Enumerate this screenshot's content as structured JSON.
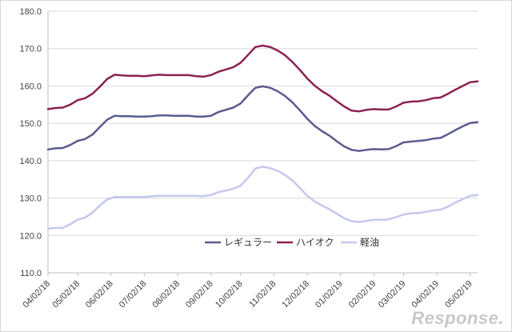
{
  "chart_data": {
    "type": "line",
    "title": "",
    "xlabel": "",
    "ylabel": "",
    "ylim": [
      110,
      180
    ],
    "y_ticks": [
      "110.0",
      "120.0",
      "130.0",
      "140.0",
      "150.0",
      "160.0",
      "170.0",
      "180.0"
    ],
    "x_tick_labels": [
      "04/02/18",
      "05/02/18",
      "06/02/18",
      "07/02/18",
      "08/02/18",
      "09/02/18",
      "10/02/18",
      "11/02/18",
      "12/02/18",
      "01/02/19",
      "02/02/19",
      "03/02/19",
      "04/02/19",
      "05/02/19"
    ],
    "x_tick_positions": [
      0,
      4,
      8.5,
      13,
      17.5,
      22,
      26,
      30.5,
      35,
      39.5,
      44,
      48,
      52.5,
      57
    ],
    "grid": "horizontal",
    "legend_position": "bottom-center",
    "series": [
      {
        "name": "レギュラー",
        "color": "#5b5b8f",
        "values": [
          143.0,
          143.3,
          143.4,
          144.2,
          145.3,
          145.8,
          147.0,
          149.0,
          151.0,
          152.0,
          151.9,
          151.9,
          151.8,
          151.8,
          151.9,
          152.1,
          152.1,
          152.0,
          152.0,
          152.0,
          151.8,
          151.8,
          152.0,
          153.0,
          153.6,
          154.2,
          155.3,
          157.5,
          159.5,
          159.9,
          159.5,
          158.6,
          157.3,
          155.6,
          153.5,
          151.2,
          149.3,
          147.9,
          146.7,
          145.2,
          143.8,
          142.9,
          142.6,
          142.9,
          143.1,
          143.0,
          143.1,
          143.9,
          144.9,
          145.1,
          145.3,
          145.5,
          145.9,
          146.1,
          147.1,
          148.2,
          149.2,
          150.1,
          150.3
        ]
      },
      {
        "name": "ハイオク",
        "color": "#8b2252",
        "values": [
          153.8,
          154.1,
          154.2,
          155.0,
          156.2,
          156.7,
          157.9,
          159.8,
          161.9,
          163.0,
          162.8,
          162.7,
          162.7,
          162.6,
          162.8,
          163.0,
          162.9,
          162.9,
          162.9,
          162.9,
          162.6,
          162.5,
          162.9,
          163.8,
          164.4,
          165.0,
          166.2,
          168.3,
          170.4,
          170.8,
          170.4,
          169.5,
          168.2,
          166.4,
          164.3,
          162.0,
          160.1,
          158.6,
          157.4,
          155.9,
          154.5,
          153.4,
          153.2,
          153.6,
          153.8,
          153.7,
          153.7,
          154.5,
          155.5,
          155.8,
          155.9,
          156.2,
          156.7,
          156.9,
          157.9,
          159.0,
          160.0,
          161.0,
          161.2
        ]
      },
      {
        "name": "軽油",
        "color": "#c5c8ee",
        "values": [
          121.8,
          122.0,
          122.0,
          123.0,
          124.2,
          124.8,
          126.1,
          128.0,
          129.6,
          130.3,
          130.3,
          130.3,
          130.3,
          130.3,
          130.5,
          130.6,
          130.6,
          130.6,
          130.6,
          130.6,
          130.6,
          130.5,
          130.8,
          131.6,
          132.0,
          132.5,
          133.3,
          135.4,
          137.9,
          138.4,
          138.0,
          137.3,
          136.2,
          134.7,
          132.7,
          130.6,
          129.1,
          128.0,
          127.0,
          125.8,
          124.6,
          123.8,
          123.6,
          123.9,
          124.2,
          124.2,
          124.3,
          124.9,
          125.6,
          125.9,
          126.0,
          126.3,
          126.7,
          126.9,
          127.7,
          128.8,
          129.7,
          130.6,
          130.8
        ]
      }
    ]
  },
  "watermark": "Response."
}
